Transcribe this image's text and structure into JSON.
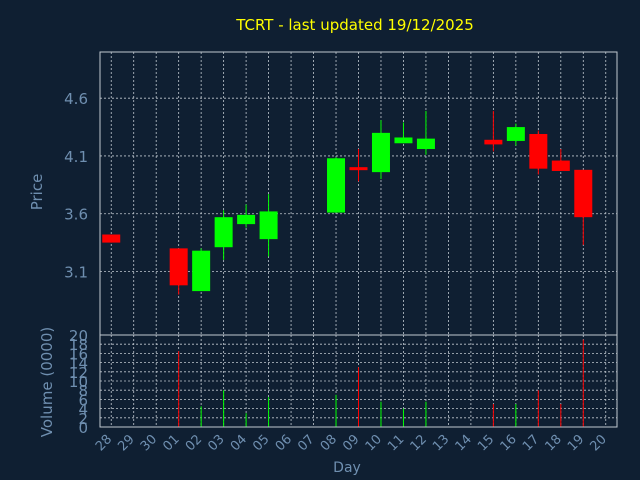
{
  "chart_data": {
    "type": "candlestick",
    "title": "TCRT - last updated 19/12/2025",
    "xlabel": "Day",
    "ylabel_price": "Price",
    "ylabel_volume": "Volume (0000)",
    "price_ylim": [
      2.55,
      5.0
    ],
    "price_ticks": [
      "3.1",
      "3.6",
      "4.1",
      "4.6"
    ],
    "volume_ylim": [
      0,
      20
    ],
    "volume_ticks": [
      "0",
      "2",
      "4",
      "6",
      "8",
      "10",
      "12",
      "14",
      "16",
      "18",
      "20"
    ],
    "x_ticks": [
      "28",
      "29",
      "30",
      "01",
      "02",
      "03",
      "04",
      "05",
      "06",
      "07",
      "08",
      "09",
      "10",
      "11",
      "12",
      "13",
      "14",
      "15",
      "16",
      "17",
      "18",
      "19",
      "20"
    ],
    "grid": true,
    "colors": {
      "background": "#0f1f32",
      "title": "#ffff00",
      "axis_label": "#6f8fb0",
      "grid": "#c0c8d0",
      "up": "#00ff00",
      "down": "#ff0000"
    },
    "candles": [
      {
        "day": "28",
        "open": 3.42,
        "high": 3.42,
        "low": 3.35,
        "close": 3.35,
        "volume": 0
      },
      {
        "day": "01",
        "open": 3.3,
        "high": 3.3,
        "low": 2.9,
        "close": 2.98,
        "volume": 16.5
      },
      {
        "day": "02",
        "open": 2.93,
        "high": 3.3,
        "low": 2.93,
        "close": 3.28,
        "volume": 4.5
      },
      {
        "day": "03",
        "open": 3.31,
        "high": 3.63,
        "low": 3.2,
        "close": 3.57,
        "volume": 8
      },
      {
        "day": "04",
        "open": 3.51,
        "high": 3.68,
        "low": 3.48,
        "close": 3.59,
        "volume": 3
      },
      {
        "day": "05",
        "open": 3.38,
        "high": 3.77,
        "low": 3.23,
        "close": 3.62,
        "volume": 6.5
      },
      {
        "day": "08",
        "open": 3.61,
        "high": 4.09,
        "low": 3.61,
        "close": 4.08,
        "volume": 7
      },
      {
        "day": "09",
        "open": 4.0,
        "high": 4.16,
        "low": 3.88,
        "close": 3.98,
        "volume": 13
      },
      {
        "day": "10",
        "open": 3.96,
        "high": 4.41,
        "low": 3.9,
        "close": 4.3,
        "volume": 5.5
      },
      {
        "day": "11",
        "open": 4.21,
        "high": 4.39,
        "low": 4.21,
        "close": 4.26,
        "volume": 4
      },
      {
        "day": "12",
        "open": 4.16,
        "high": 4.49,
        "low": 4.11,
        "close": 4.25,
        "volume": 5.5
      },
      {
        "day": "15",
        "open": 4.24,
        "high": 4.49,
        "low": 4.14,
        "close": 4.2,
        "volume": 5
      },
      {
        "day": "16",
        "open": 4.23,
        "high": 4.38,
        "low": 4.19,
        "close": 4.35,
        "volume": 5
      },
      {
        "day": "17",
        "open": 4.29,
        "high": 4.32,
        "low": 3.94,
        "close": 3.99,
        "volume": 8
      },
      {
        "day": "18",
        "open": 4.06,
        "high": 4.16,
        "low": 3.97,
        "close": 3.97,
        "volume": 5
      },
      {
        "day": "19",
        "open": 3.98,
        "high": 3.98,
        "low": 3.33,
        "close": 3.57,
        "volume": 19
      }
    ]
  }
}
